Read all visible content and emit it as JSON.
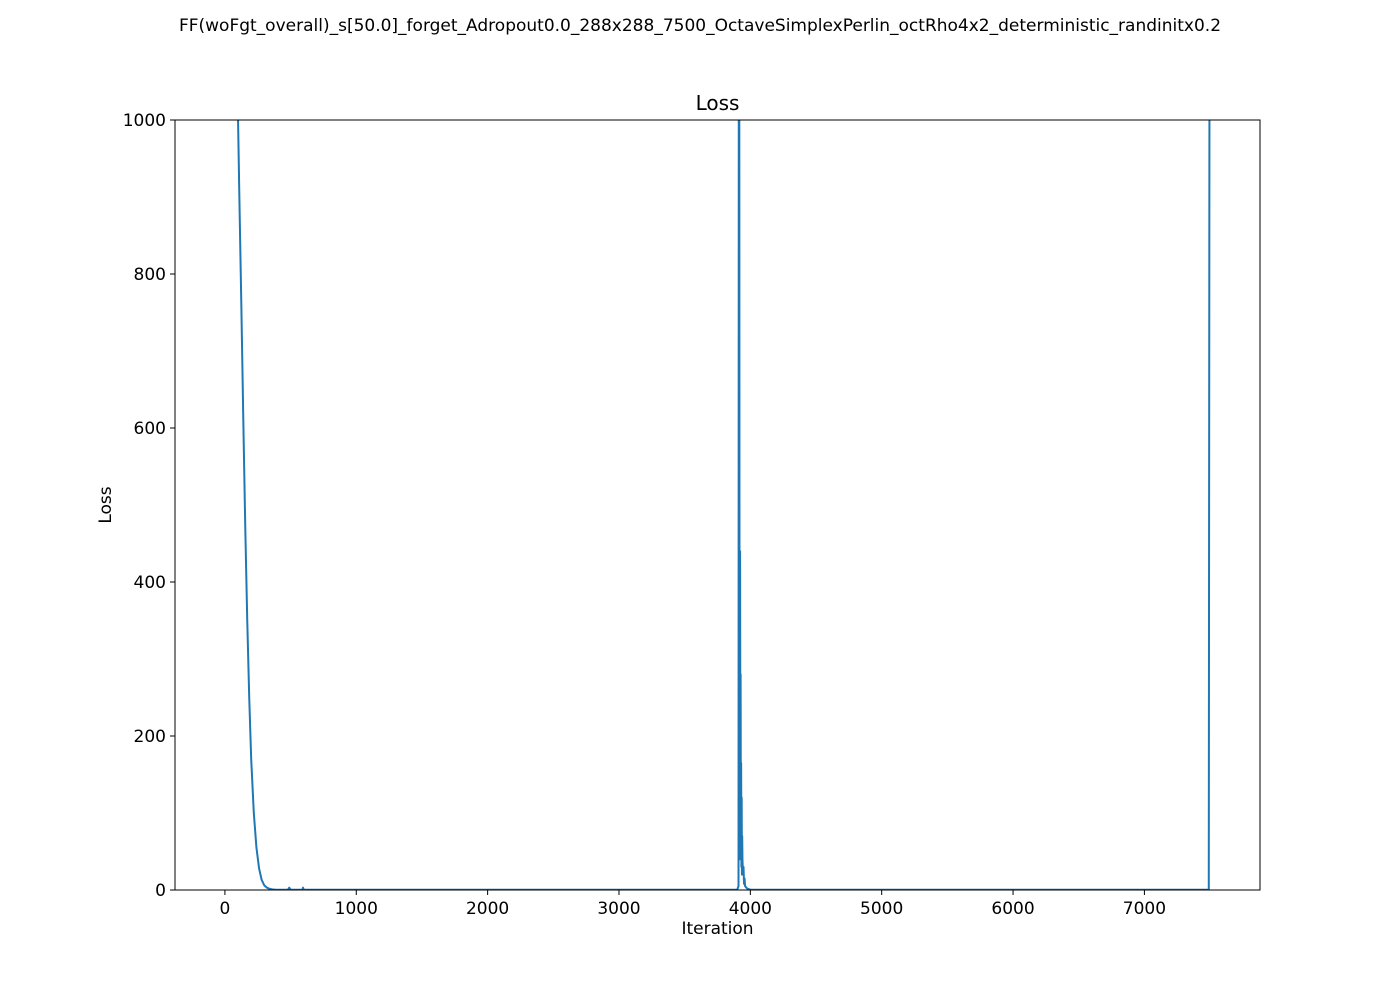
{
  "figure": {
    "suptitle": "FF(woFgt_overall)_s[50.0]_forget_Adropout0.0_288x288_7500_OctaveSimplexPerlin_octRho4x2_deterministic_randinitx0.2"
  },
  "chart_data": {
    "type": "line",
    "title": "Loss",
    "xlabel": "Iteration",
    "ylabel": "Loss",
    "xlim": [
      -380,
      7880
    ],
    "ylim": [
      0,
      1000
    ],
    "xticks": [
      0,
      1000,
      2000,
      3000,
      4000,
      5000,
      6000,
      7000
    ],
    "yticks": [
      0,
      200,
      400,
      600,
      800,
      1000
    ],
    "grid": false,
    "series": [
      {
        "color": "#1f77b4",
        "x": [
          100,
          110,
          125,
          140,
          155,
          170,
          185,
          200,
          220,
          240,
          260,
          280,
          300,
          320,
          340,
          360,
          380,
          400,
          450,
          480,
          490,
          500,
          550,
          590,
          595,
          600,
          700,
          1000,
          2000,
          3000,
          3900,
          3910,
          3912,
          3914,
          3916,
          3918,
          3920,
          3922,
          3924,
          3926,
          3928,
          3930,
          3932,
          3934,
          3936,
          3938,
          3940,
          3944,
          3948,
          3952,
          3956,
          3960,
          3970,
          3980,
          4000,
          4100,
          5000,
          6000,
          7000,
          7490,
          7495,
          7500
        ],
        "y": [
          1000,
          900,
          760,
          610,
          470,
          350,
          250,
          170,
          100,
          55,
          28,
          13,
          6,
          3,
          1.5,
          0.8,
          0.5,
          0.4,
          0.4,
          0.5,
          3,
          0.5,
          0.4,
          0.5,
          3,
          0.4,
          0.3,
          0.3,
          0.3,
          0.3,
          0.3,
          5,
          1000,
          1000,
          1000,
          120,
          40,
          440,
          150,
          280,
          60,
          165,
          30,
          120,
          20,
          70,
          40,
          20,
          30,
          8,
          15,
          5,
          3,
          1.5,
          0.5,
          0.3,
          0.3,
          0.3,
          0.3,
          0.3,
          1000,
          1000
        ]
      }
    ]
  }
}
